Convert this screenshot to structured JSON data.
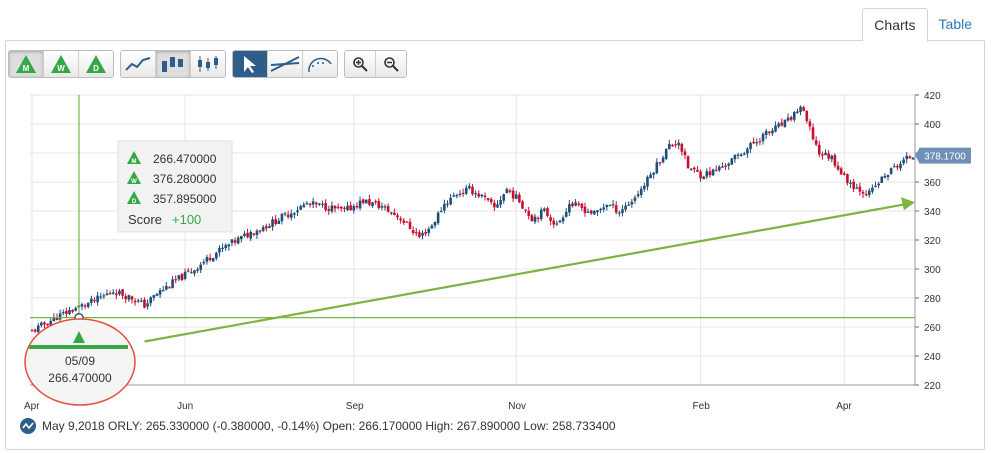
{
  "tabs": [
    {
      "label": "Charts",
      "active": true
    },
    {
      "label": "Table",
      "active": false
    }
  ],
  "toolbar": {
    "period_buttons": [
      "M",
      "W",
      "D"
    ],
    "chart_type_icons": [
      "line-chart-icon",
      "bar-chart-icon",
      "candlestick-chart-icon"
    ],
    "tool_icons": [
      "pointer-arrow-icon",
      "trendline-icon",
      "fibonacci-icon"
    ],
    "zoom_icons": [
      "zoom-in-icon",
      "zoom-out-icon"
    ]
  },
  "info_box": {
    "rows": [
      {
        "marker": "M",
        "value": "266.470000"
      },
      {
        "marker": "W",
        "value": "376.280000"
      },
      {
        "marker": "D",
        "value": "357.895000"
      }
    ],
    "score_label": "Score",
    "score_value": "+100"
  },
  "callout": {
    "date": "05/09",
    "value": "266.470000"
  },
  "last_price_badge": "378.1700",
  "status_bar": "May 9,2018 ORLY: 265.330000 (-0.380000, -0.14%) Open: 266.170000 High: 267.890000 Low: 258.733400",
  "colors": {
    "up": "#1f4e79",
    "down": "#c8102e",
    "signal_green": "#35a846",
    "line_green": "#7cb342",
    "callout_ring": "#e74c3c",
    "badge": "#6f8fb6",
    "grid": "#e6e6e6"
  },
  "chart_data": {
    "type": "candlestick",
    "x_tick_labels": [
      "Apr",
      "Jun",
      "Sep",
      "Nov",
      "Feb",
      "Apr"
    ],
    "y_ticks": [
      220,
      240,
      260,
      280,
      300,
      320,
      340,
      360,
      380,
      400,
      420
    ],
    "ylim": [
      220,
      420
    ],
    "grid": true,
    "price_path": [
      [
        0,
        257
      ],
      [
        4,
        262
      ],
      [
        8,
        267
      ],
      [
        14,
        273
      ],
      [
        20,
        278
      ],
      [
        26,
        285
      ],
      [
        32,
        280
      ],
      [
        36,
        275
      ],
      [
        40,
        283
      ],
      [
        46,
        292
      ],
      [
        52,
        300
      ],
      [
        58,
        310
      ],
      [
        64,
        318
      ],
      [
        70,
        325
      ],
      [
        76,
        331
      ],
      [
        82,
        338
      ],
      [
        88,
        345
      ],
      [
        94,
        343
      ],
      [
        100,
        340
      ],
      [
        106,
        347
      ],
      [
        112,
        343
      ],
      [
        118,
        335
      ],
      [
        124,
        322
      ],
      [
        128,
        330
      ],
      [
        132,
        345
      ],
      [
        136,
        352
      ],
      [
        140,
        355
      ],
      [
        144,
        350
      ],
      [
        148,
        342
      ],
      [
        152,
        355
      ],
      [
        156,
        347
      ],
      [
        160,
        335
      ],
      [
        164,
        340
      ],
      [
        168,
        330
      ],
      [
        172,
        345
      ],
      [
        176,
        342
      ],
      [
        180,
        338
      ],
      [
        184,
        345
      ],
      [
        188,
        340
      ],
      [
        192,
        347
      ],
      [
        196,
        358
      ],
      [
        200,
        372
      ],
      [
        204,
        385
      ],
      [
        207,
        388
      ],
      [
        210,
        370
      ],
      [
        214,
        365
      ],
      [
        218,
        367
      ],
      [
        222,
        372
      ],
      [
        226,
        378
      ],
      [
        230,
        385
      ],
      [
        234,
        392
      ],
      [
        238,
        397
      ],
      [
        242,
        402
      ],
      [
        246,
        412
      ],
      [
        249,
        396
      ],
      [
        252,
        380
      ],
      [
        256,
        377
      ],
      [
        260,
        363
      ],
      [
        264,
        356
      ],
      [
        268,
        352
      ],
      [
        272,
        362
      ],
      [
        276,
        370
      ],
      [
        280,
        376
      ],
      [
        282,
        378.17
      ]
    ],
    "signal_level": 266.47,
    "signal_date": "05/09",
    "trendline": {
      "start": [
        36,
        250
      ],
      "end": [
        282,
        346
      ]
    }
  }
}
